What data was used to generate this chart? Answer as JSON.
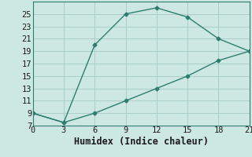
{
  "line1_x": [
    0,
    3,
    6,
    9,
    12,
    15,
    18,
    21
  ],
  "line1_y": [
    9,
    7.5,
    20,
    25,
    26,
    24.5,
    21,
    19
  ],
  "line2_x": [
    0,
    3,
    6,
    9,
    12,
    15,
    18,
    21
  ],
  "line2_y": [
    9,
    7.5,
    9,
    11,
    13,
    15,
    17.5,
    19
  ],
  "line_color": "#2e7d6e",
  "bg_color": "#cde8e2",
  "grid_color": "#aacfc8",
  "xlabel": "Humidex (Indice chaleur)",
  "xlim": [
    0,
    21
  ],
  "ylim": [
    7,
    27
  ],
  "xticks": [
    0,
    3,
    6,
    9,
    12,
    15,
    18,
    21
  ],
  "yticks": [
    7,
    9,
    11,
    13,
    15,
    17,
    19,
    21,
    23,
    25
  ],
  "tick_fontsize": 7.5,
  "label_fontsize": 8.5
}
